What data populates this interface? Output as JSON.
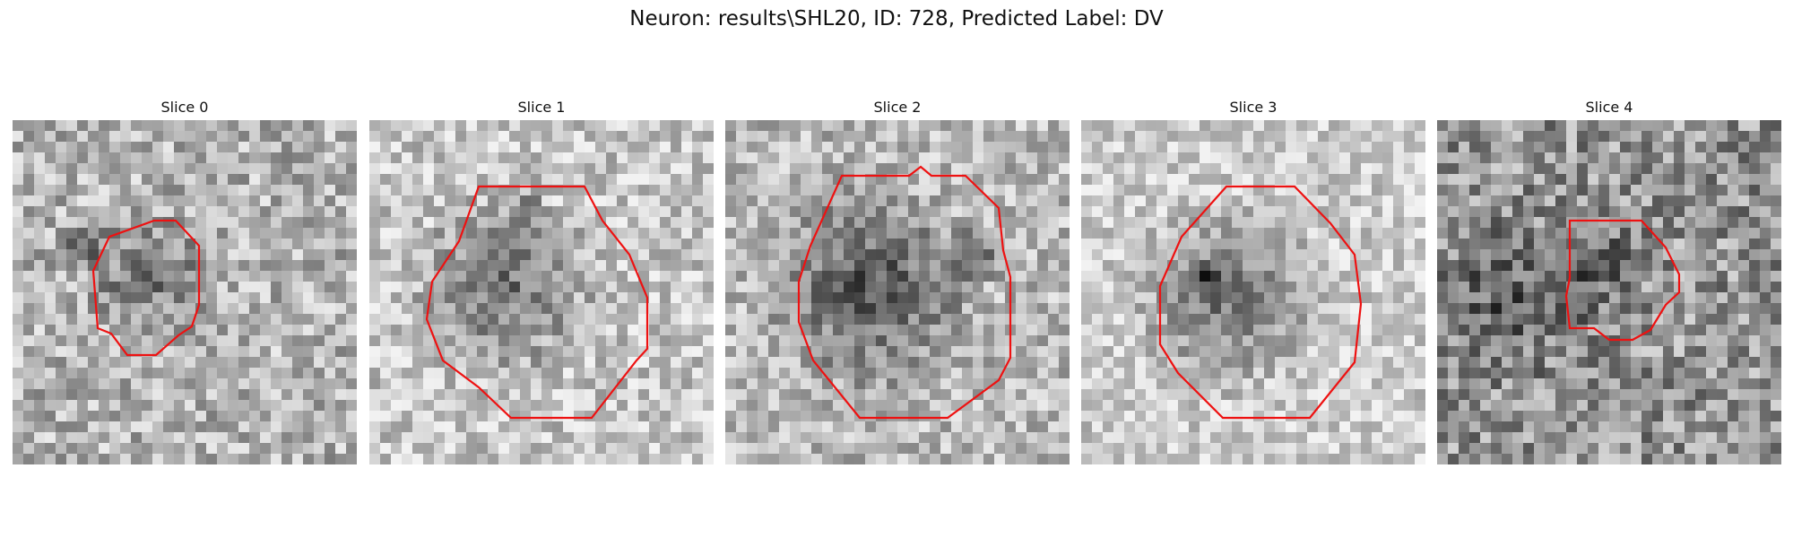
{
  "figure": {
    "title": "Neuron: results\\SHL20, ID: 728, Predicted Label: DV",
    "outline_color": "#ee1111",
    "panels": [
      {
        "title": "Slice 0",
        "seed": 11,
        "bright": 0.7,
        "spread": 0.22,
        "blob_strength": 0.25
      },
      {
        "title": "Slice 1",
        "seed": 23,
        "bright": 0.78,
        "spread": 0.2,
        "blob_strength": 0.32
      },
      {
        "title": "Slice 2",
        "seed": 37,
        "bright": 0.72,
        "spread": 0.2,
        "blob_strength": 0.38
      },
      {
        "title": "Slice 3",
        "seed": 53,
        "bright": 0.8,
        "spread": 0.18,
        "blob_strength": 0.34
      },
      {
        "title": "Slice 4",
        "seed": 71,
        "bright": 0.58,
        "spread": 0.26,
        "blob_strength": 0.22
      }
    ]
  }
}
